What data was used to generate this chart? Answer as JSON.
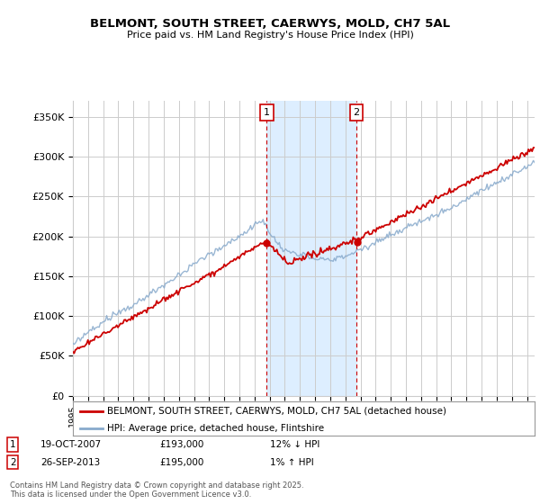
{
  "title": "BELMONT, SOUTH STREET, CAERWYS, MOLD, CH7 5AL",
  "subtitle": "Price paid vs. HM Land Registry's House Price Index (HPI)",
  "ylabel_ticks": [
    "£0",
    "£50K",
    "£100K",
    "£150K",
    "£200K",
    "£250K",
    "£300K",
    "£350K"
  ],
  "ytick_values": [
    0,
    50000,
    100000,
    150000,
    200000,
    250000,
    300000,
    350000
  ],
  "ylim": [
    0,
    370000
  ],
  "xlim_start": 1995.0,
  "xlim_end": 2025.5,
  "sale1_date": 2007.8,
  "sale1_price": 193000,
  "sale2_date": 2013.73,
  "sale2_price": 195000,
  "highlight_color": "#ddeeff",
  "line1_color": "#cc0000",
  "line2_color": "#88aacc",
  "vline_color": "#cc0000",
  "grid_color": "#cccccc",
  "background_color": "#ffffff",
  "legend1_label": "BELMONT, SOUTH STREET, CAERWYS, MOLD, CH7 5AL (detached house)",
  "legend2_label": "HPI: Average price, detached house, Flintshire",
  "sale1_text": "19-OCT-2007",
  "sale1_amount": "£193,000",
  "sale1_hpi": "12% ↓ HPI",
  "sale2_text": "26-SEP-2013",
  "sale2_amount": "£195,000",
  "sale2_hpi": "1% ↑ HPI",
  "footer": "Contains HM Land Registry data © Crown copyright and database right 2025.\nThis data is licensed under the Open Government Licence v3.0.",
  "xtick_years": [
    1995,
    1996,
    1997,
    1998,
    1999,
    2000,
    2001,
    2002,
    2003,
    2004,
    2005,
    2006,
    2007,
    2008,
    2009,
    2010,
    2011,
    2012,
    2013,
    2014,
    2015,
    2016,
    2017,
    2018,
    2019,
    2020,
    2021,
    2022,
    2023,
    2024,
    2025
  ]
}
